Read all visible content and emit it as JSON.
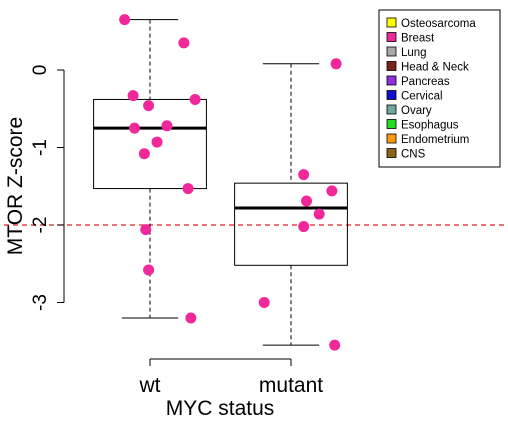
{
  "chart_data": {
    "type": "box",
    "xlabel": "MYC status",
    "ylabel": "MTOR Z-score",
    "categories": [
      "wt",
      "mutant"
    ],
    "yticks": [
      0,
      -1,
      -2,
      -3
    ],
    "ytick_labels": [
      "0",
      "-1",
      "-2",
      "-3"
    ],
    "ylim": [
      -3.75,
      0.75
    ],
    "reference_line": {
      "y": -2,
      "color": "#dd2222",
      "style": "dashed"
    },
    "boxes": [
      {
        "group": "wt",
        "whisker_low": -3.2,
        "q1": -1.53,
        "median": -0.75,
        "q3": -0.38,
        "whisker_high": 0.65
      },
      {
        "group": "mutant",
        "whisker_low": -3.55,
        "q1": -2.52,
        "median": -1.78,
        "q3": -1.46,
        "whisker_high": 0.08
      }
    ],
    "points": [
      {
        "group": "wt",
        "x": 0.82,
        "y": 0.65
      },
      {
        "group": "wt",
        "x": 1.24,
        "y": 0.35
      },
      {
        "group": "wt",
        "x": 0.88,
        "y": -0.33
      },
      {
        "group": "wt",
        "x": 0.99,
        "y": -0.46
      },
      {
        "group": "wt",
        "x": 1.32,
        "y": -0.38
      },
      {
        "group": "wt",
        "x": 0.89,
        "y": -0.75
      },
      {
        "group": "wt",
        "x": 1.12,
        "y": -0.72
      },
      {
        "group": "wt",
        "x": 1.05,
        "y": -0.93
      },
      {
        "group": "wt",
        "x": 0.96,
        "y": -1.08
      },
      {
        "group": "wt",
        "x": 1.27,
        "y": -1.53
      },
      {
        "group": "wt",
        "x": 0.97,
        "y": -2.06
      },
      {
        "group": "wt",
        "x": 0.99,
        "y": -2.58
      },
      {
        "group": "wt",
        "x": 1.29,
        "y": -3.2
      },
      {
        "group": "mutant",
        "x": 2.32,
        "y": 0.08
      },
      {
        "group": "mutant",
        "x": 2.09,
        "y": -1.35
      },
      {
        "group": "mutant",
        "x": 2.29,
        "y": -1.56
      },
      {
        "group": "mutant",
        "x": 2.11,
        "y": -1.69
      },
      {
        "group": "mutant",
        "x": 2.2,
        "y": -1.86
      },
      {
        "group": "mutant",
        "x": 2.09,
        "y": -2.02
      },
      {
        "group": "mutant",
        "x": 1.81,
        "y": -3.0
      },
      {
        "group": "mutant",
        "x": 2.31,
        "y": -3.55
      }
    ],
    "point_color": "#f0289a",
    "legend": {
      "position": "top-right",
      "items": [
        {
          "label": "Osteosarcoma",
          "color": "#ffff00"
        },
        {
          "label": "Breast",
          "color": "#f0289a"
        },
        {
          "label": "Lung",
          "color": "#a8a8a8"
        },
        {
          "label": "Head & Neck",
          "color": "#7a2418"
        },
        {
          "label": "Pancreas",
          "color": "#9030e0"
        },
        {
          "label": "Cervical",
          "color": "#1010d0"
        },
        {
          "label": "Ovary",
          "color": "#70a8a0"
        },
        {
          "label": "Esophagus",
          "color": "#20e020"
        },
        {
          "label": "Endometrium",
          "color": "#ff9a10"
        },
        {
          "label": "CNS",
          "color": "#8a6418"
        }
      ]
    }
  }
}
